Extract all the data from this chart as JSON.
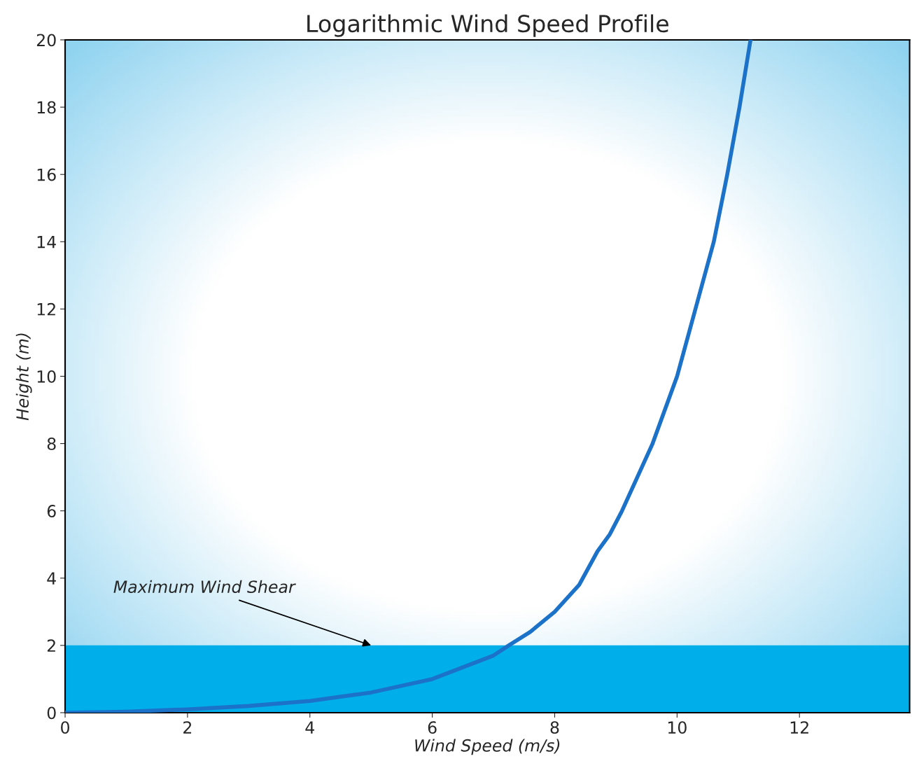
{
  "chart_data": {
    "type": "line",
    "title": "Logarithmic Wind Speed Profile",
    "xlabel": "Wind Speed (m/s)",
    "ylabel": "Height (m)",
    "x": [
      0,
      1,
      2,
      3,
      4,
      5,
      6,
      6.5,
      7,
      7.25,
      7.6,
      8,
      8.4,
      8.7,
      8.9,
      9.1,
      9.6,
      10.0,
      10.3,
      10.6,
      10.82,
      11.02,
      11.2
    ],
    "series": [
      {
        "color": "#1b72c8",
        "values": [
          0,
          0.03,
          0.1,
          0.2,
          0.35,
          0.6,
          1.0,
          1.35,
          1.7,
          2.0,
          2.4,
          3.0,
          3.8,
          4.8,
          5.3,
          6,
          8,
          10,
          12,
          14,
          16,
          18,
          20
        ]
      }
    ],
    "xlim": [
      0,
      13.8
    ],
    "xticks": [
      0,
      2,
      4,
      6,
      8,
      10,
      12
    ],
    "ylim": [
      0,
      20
    ],
    "yticks": [
      0,
      2,
      4,
      6,
      8,
      10,
      12,
      14,
      16,
      18,
      20
    ],
    "bands": [
      {
        "axis": "y",
        "from": 0,
        "to": 2,
        "color": "#00aeea"
      }
    ],
    "annotations": [
      {
        "text": "Maximum Wind Shear",
        "x": 5,
        "y": 2
      }
    ],
    "grid": false,
    "legend": false,
    "marker": "none",
    "line_style": "solid"
  }
}
